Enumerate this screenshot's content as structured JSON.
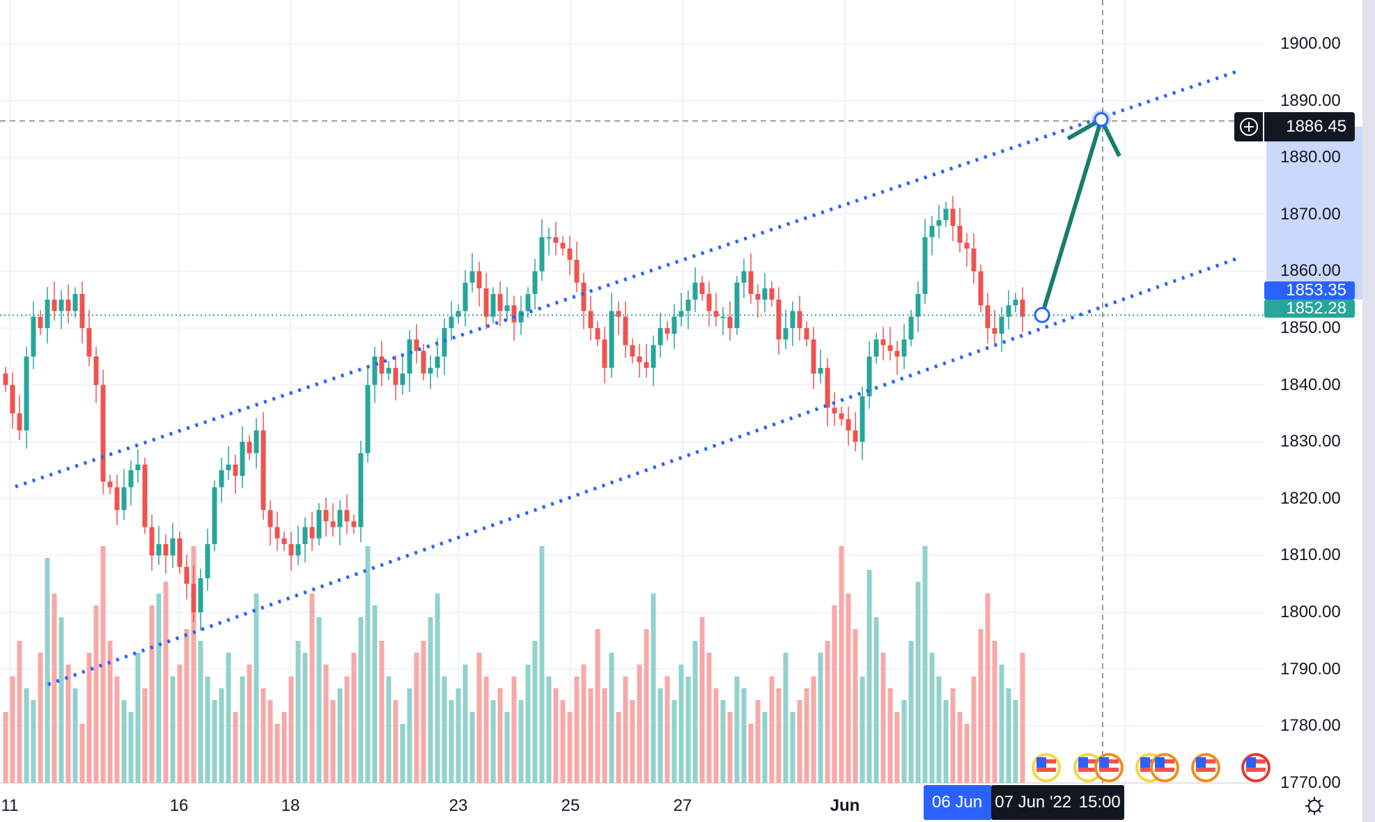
{
  "chart_data": {
    "type": "candlestick",
    "price_axis": {
      "ticks": [
        "1900.00",
        "1890.00",
        "1880.00",
        "1870.00",
        "1860.00",
        "1850.00",
        "1840.00",
        "1830.00",
        "1820.00",
        "1810.00",
        "1800.00",
        "1790.00",
        "1780.00",
        "1770.00"
      ],
      "range": [
        1770,
        1900
      ]
    },
    "time_axis": {
      "ticks": [
        "11",
        "16",
        "18",
        "23",
        "25",
        "27",
        "Jun"
      ]
    },
    "closes": [
      1840,
      1835,
      1832,
      1845,
      1852,
      1850,
      1855,
      1853,
      1855,
      1853,
      1856,
      1850,
      1845,
      1840,
      1823,
      1822,
      1818,
      1822,
      1825,
      1826,
      1815,
      1810,
      1812,
      1810,
      1813,
      1808,
      1805,
      1800,
      1806,
      1812,
      1822,
      1825,
      1826,
      1824,
      1830,
      1828,
      1832,
      1818,
      1815,
      1813,
      1812,
      1810,
      1812,
      1815,
      1813,
      1818,
      1816,
      1815,
      1818,
      1816,
      1815,
      1828,
      1840,
      1845,
      1842,
      1843,
      1840,
      1842,
      1848,
      1846,
      1842,
      1843,
      1845,
      1850,
      1852,
      1853,
      1858,
      1860,
      1857,
      1852,
      1856,
      1853,
      1854,
      1851,
      1853,
      1856,
      1860,
      1866,
      1866,
      1865,
      1864,
      1862,
      1858,
      1853,
      1850,
      1848,
      1843,
      1853,
      1852,
      1847,
      1845,
      1844,
      1843,
      1847,
      1850,
      1849,
      1852,
      1853,
      1855,
      1858,
      1856,
      1853,
      1852,
      1852,
      1850,
      1858,
      1860,
      1856,
      1855,
      1857,
      1855,
      1848,
      1850,
      1853,
      1850,
      1848,
      1842,
      1843,
      1836,
      1835,
      1834,
      1832,
      1830,
      1838,
      1845,
      1848,
      1847,
      1846,
      1845,
      1848,
      1852,
      1856,
      1866,
      1868,
      1869,
      1871,
      1868,
      1865,
      1864,
      1860,
      1854,
      1850,
      1849,
      1852,
      1854,
      1855,
      1852
    ],
    "volumes": [
      30,
      45,
      60,
      40,
      35,
      55,
      95,
      80,
      70,
      50,
      40,
      25,
      55,
      75,
      100,
      60,
      45,
      35,
      30,
      55,
      40,
      75,
      80,
      85,
      45,
      50,
      65,
      100,
      60,
      45,
      35,
      40,
      55,
      30,
      45,
      50,
      80,
      40,
      35,
      25,
      30,
      45,
      60,
      55,
      80,
      70,
      50,
      35,
      40,
      45,
      55,
      70,
      100,
      75,
      60,
      45,
      35,
      25,
      40,
      55,
      60,
      70,
      80,
      45,
      35,
      40,
      50,
      30,
      55,
      45,
      35,
      40,
      30,
      45,
      35,
      50,
      60,
      100,
      45,
      40,
      35,
      30,
      45,
      50,
      40,
      65,
      40,
      55,
      30,
      45,
      35,
      50,
      65,
      80,
      40,
      45,
      35,
      50,
      45,
      60,
      70,
      55,
      40,
      35,
      30,
      45,
      40,
      25,
      35,
      30,
      45,
      40,
      55,
      30,
      35,
      40,
      45,
      55,
      60,
      75,
      100,
      80,
      65,
      45,
      90,
      70,
      55,
      40,
      30,
      35,
      60,
      85,
      100,
      55,
      45,
      35,
      40,
      30,
      25,
      45,
      65,
      80,
      60,
      50,
      40,
      35,
      55
    ],
    "upper_channel": {
      "start_price": 1822.1,
      "end_price": 1895.4,
      "style": "dotted",
      "color": "#2962ff"
    },
    "lower_channel": {
      "start_price": 1787.3,
      "end_price": 1862.5,
      "style": "dotted",
      "color": "#2962ff"
    },
    "projection_arrow": {
      "from_price": 1852.3,
      "to_price": 1886.7,
      "color": "#177e6a"
    },
    "colors": {
      "up": "#26a69a",
      "down": "#ef5350",
      "up_volume": "#92d2cc",
      "down_volume": "#f7a9a7"
    }
  },
  "tags": {
    "crosshair_price": "1886.45",
    "bid_price": "1853.35",
    "last_price": "1852.28",
    "time_highlight": "06 Jun",
    "crosshair_date": "07 Jun '22",
    "crosshair_time": "15:00"
  },
  "icons": {
    "add": "plus-circle-icon",
    "settings": "sun-gear-icon",
    "event": "us-flag-icon"
  }
}
